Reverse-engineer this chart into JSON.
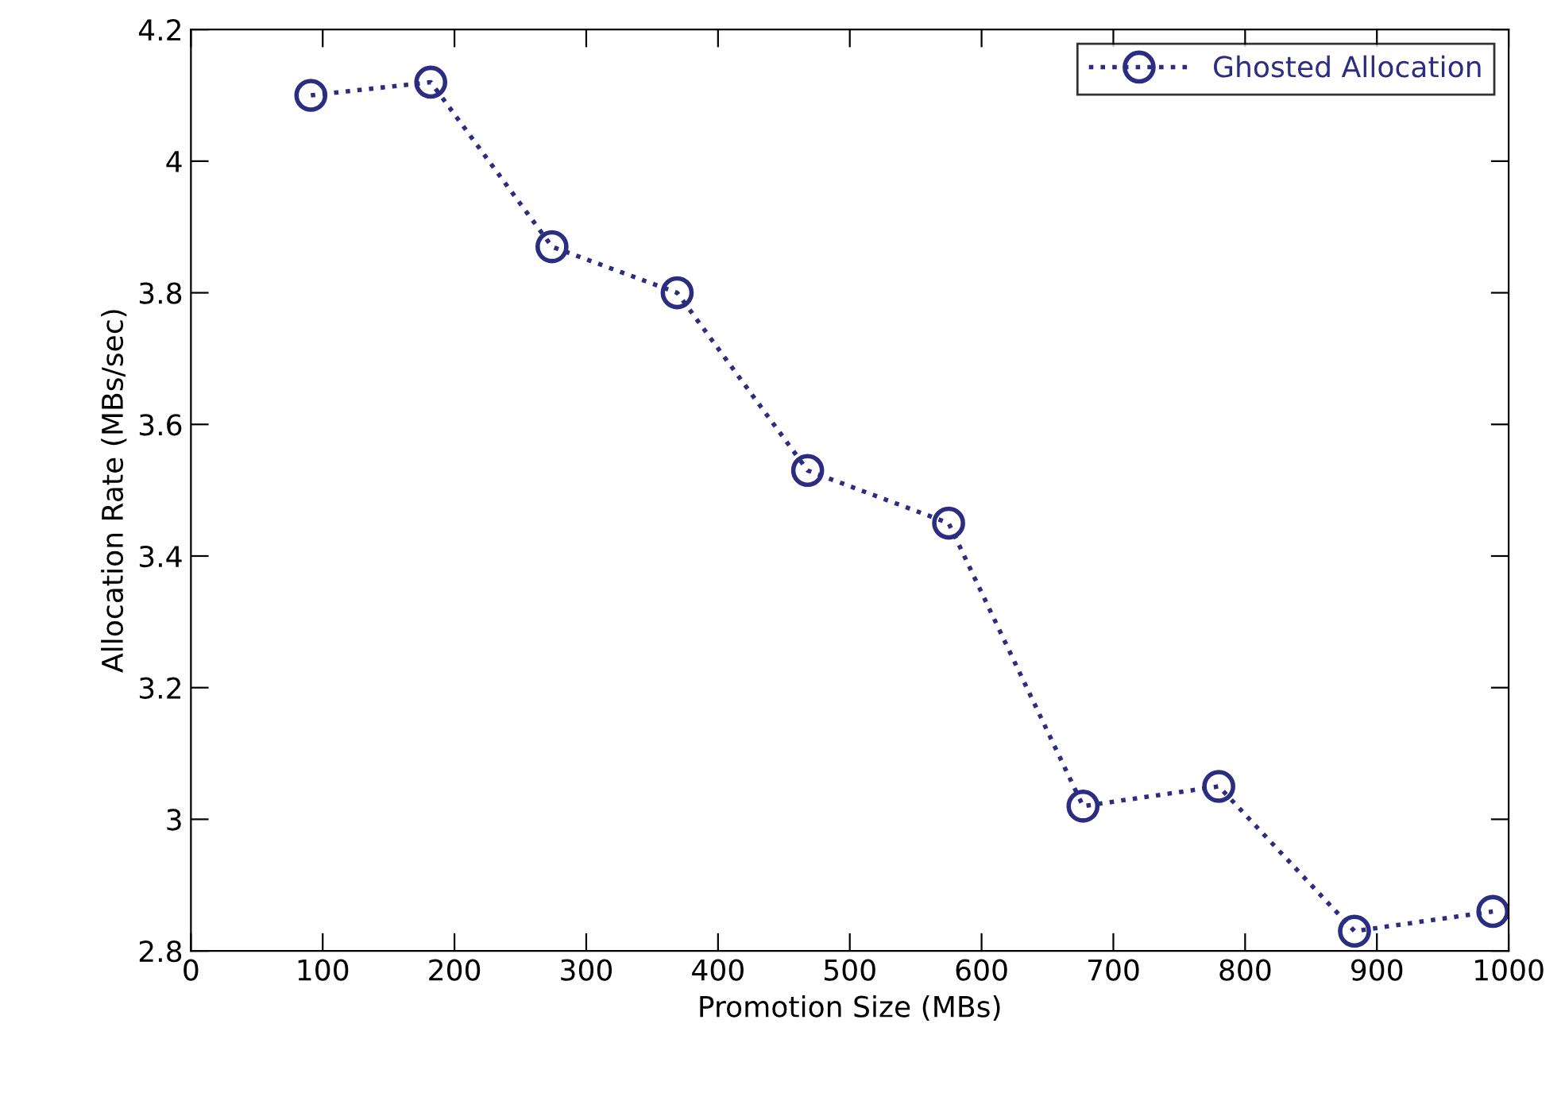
{
  "chart_data": {
    "type": "line",
    "xlabel": "Promotion Size (MBs)",
    "ylabel": "Allocation Rate (MBs/sec)",
    "x": [
      91,
      182,
      274,
      369,
      468,
      575,
      677,
      780,
      883,
      988
    ],
    "series": [
      {
        "name": "Ghosted Allocation",
        "color": "#2b2d80",
        "values": [
          4.1,
          4.12,
          3.87,
          3.8,
          3.53,
          3.45,
          3.02,
          3.05,
          2.83,
          2.86
        ]
      }
    ],
    "xlim": [
      0,
      1000
    ],
    "xticks": [
      0,
      100,
      200,
      300,
      400,
      500,
      600,
      700,
      800,
      900,
      1000
    ],
    "ylim": [
      2.8,
      4.2
    ],
    "yticks": [
      2.8,
      3,
      3.2,
      3.4,
      3.6,
      3.8,
      4,
      4.2
    ],
    "marker": "circle",
    "line_style": "dotted",
    "grid": false,
    "legend": "top right"
  }
}
